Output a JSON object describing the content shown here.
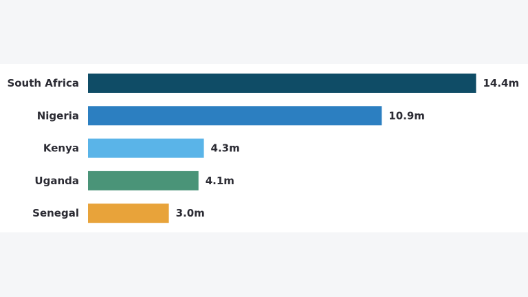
{
  "chart_data": {
    "type": "bar",
    "orientation": "horizontal",
    "title": "",
    "xlabel": "",
    "ylabel": "",
    "categories": [
      "South Africa",
      "Nigeria",
      "Kenya",
      "Uganda",
      "Senegal"
    ],
    "values": [
      14.4,
      10.9,
      4.3,
      4.1,
      3.0
    ],
    "value_labels": [
      "14.4m",
      "10.9m",
      "4.3m",
      "4.1m",
      "3.0m"
    ],
    "colors": [
      "#0f4c66",
      "#2c7fc1",
      "#5ab4e8",
      "#4a9478",
      "#e8a33a"
    ],
    "grid": false,
    "legend": "none"
  }
}
